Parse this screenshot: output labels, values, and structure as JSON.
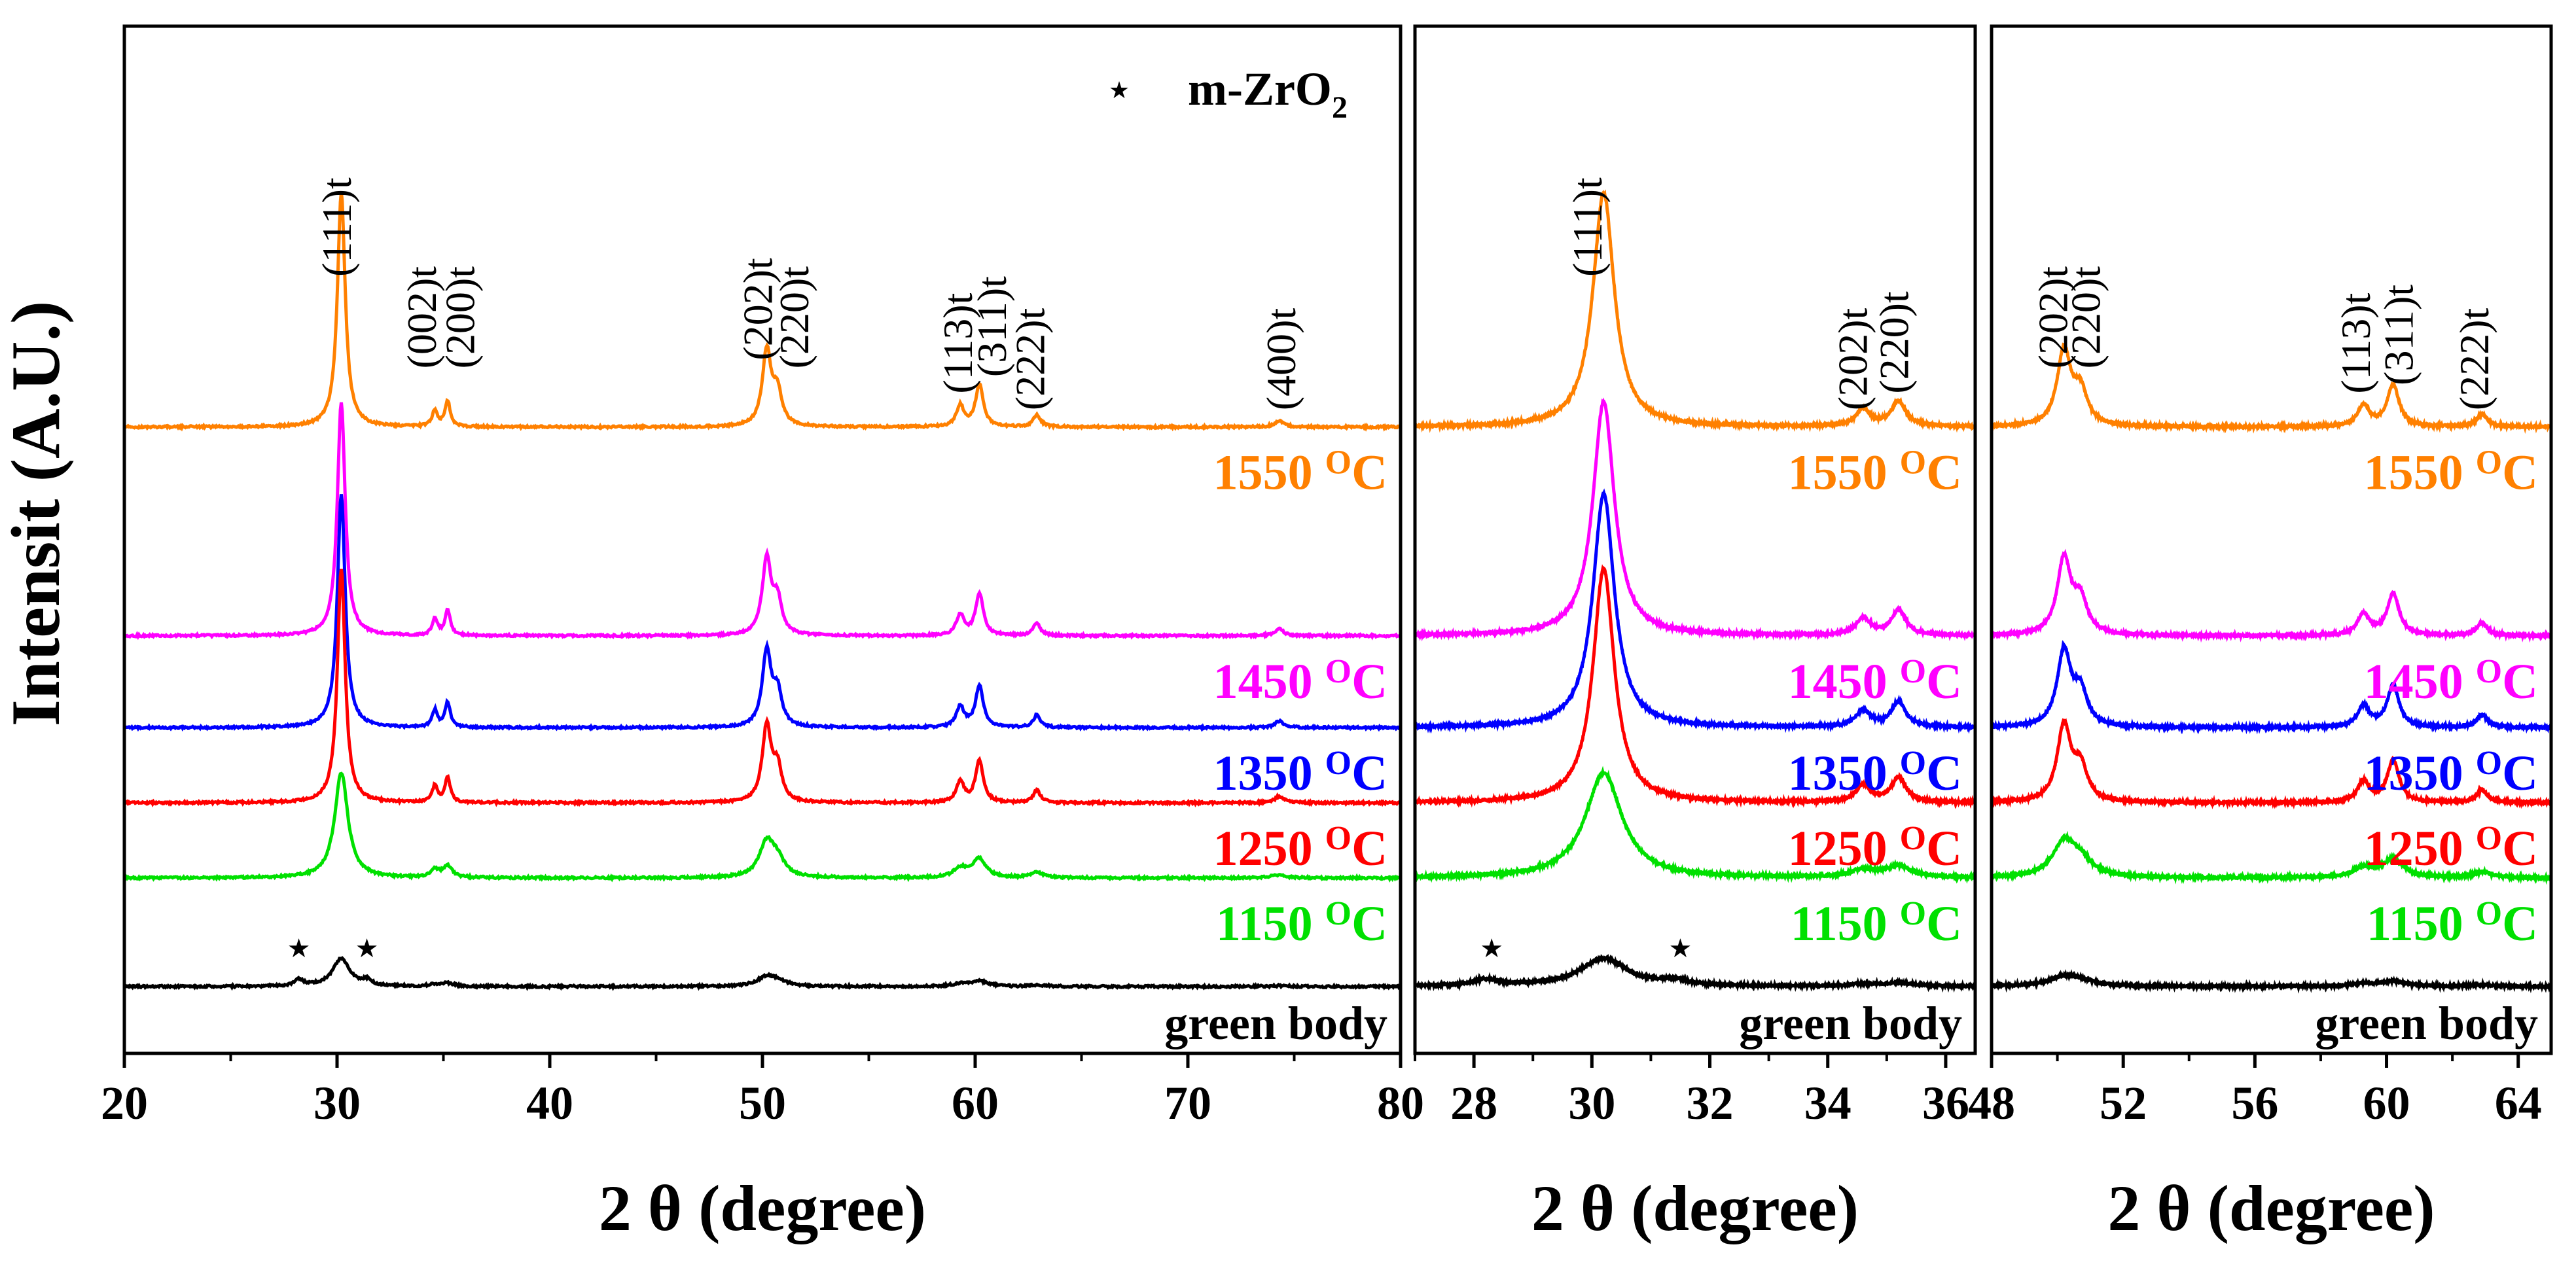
{
  "chart_data": {
    "type": "line",
    "ylabel": "Intensit (A.U.)",
    "legend": {
      "marker": "★",
      "label": "m-ZrO",
      "subscript": "2"
    },
    "temperature_unit": {
      "superscript": "O",
      "unit": "C"
    },
    "samples": [
      {
        "name": "1550",
        "color": "#ff8000",
        "offset": 7
      },
      {
        "name": "1450",
        "color": "#ff00ff",
        "offset": 4.5
      },
      {
        "name": "1350",
        "color": "#0000ff",
        "offset": 3.4
      },
      {
        "name": "1250",
        "color": "#ff0000",
        "offset": 2.5
      },
      {
        "name": "1150",
        "color": "#00e000",
        "offset": 1.6
      },
      {
        "name": "green body",
        "color": "#000000",
        "offset": 0.3
      }
    ],
    "peaks": [
      {
        "pos": 30.2,
        "h": 2.8,
        "w": 0.22
      },
      {
        "pos": 34.6,
        "h": 0.2,
        "w": 0.15
      },
      {
        "pos": 35.2,
        "h": 0.3,
        "w": 0.15
      },
      {
        "pos": 50.2,
        "h": 0.9,
        "w": 0.25
      },
      {
        "pos": 50.7,
        "h": 0.4,
        "w": 0.25
      },
      {
        "pos": 59.3,
        "h": 0.25,
        "w": 0.22
      },
      {
        "pos": 60.2,
        "h": 0.5,
        "w": 0.22
      },
      {
        "pos": 62.9,
        "h": 0.15,
        "w": 0.2
      },
      {
        "pos": 74.3,
        "h": 0.08,
        "w": 0.25
      }
    ],
    "panels": [
      {
        "id": "full",
        "xlim": [
          20,
          80
        ],
        "ylim": [
          -0.5,
          11.8
        ],
        "xticks": [
          20,
          30,
          40,
          50,
          60,
          70,
          80
        ],
        "xlabel": "2 θ (degree)",
        "show_ylabel": true,
        "show_legend": true,
        "peak_labels": [
          {
            "text": "(111)t",
            "x": 30.2,
            "y": 8.8
          },
          {
            "text": "(002)t",
            "x": 34.2,
            "y": 7.7
          },
          {
            "text": "(200)t",
            "x": 36.0,
            "y": 7.7
          },
          {
            "text": "(202)t",
            "x": 50.0,
            "y": 7.8
          },
          {
            "text": "(220)t",
            "x": 51.7,
            "y": 7.7
          },
          {
            "text": "(113)t",
            "x": 59.4,
            "y": 7.4
          },
          {
            "text": "(311)t",
            "x": 61.0,
            "y": 7.6
          },
          {
            "text": "(222)t",
            "x": 62.8,
            "y": 7.2
          },
          {
            "text": "(400)t",
            "x": 74.6,
            "y": 7.2
          }
        ],
        "monoclinic_marks": [
          28.2,
          31.4
        ]
      },
      {
        "id": "zoom-28-36",
        "xlim": [
          27.0,
          36.5
        ],
        "ylim": [
          -0.5,
          11.8
        ],
        "xticks": [
          28,
          30,
          32,
          34,
          36
        ],
        "xlabel": "2 θ (degree)",
        "show_ylabel": false,
        "show_legend": false,
        "peak_labels": [
          {
            "text": "(111)t",
            "x": 30.0,
            "y": 8.8
          },
          {
            "text": "(202)t",
            "x": 34.5,
            "y": 7.2
          },
          {
            "text": "(220)t",
            "x": 35.2,
            "y": 7.4
          }
        ],
        "monoclinic_marks": [
          28.3,
          31.5
        ]
      },
      {
        "id": "zoom-48-64",
        "xlim": [
          48,
          65
        ],
        "ylim": [
          -0.5,
          11.8
        ],
        "xticks": [
          48,
          52,
          56,
          60,
          64
        ],
        "xlabel": "2 θ (degree)",
        "show_ylabel": false,
        "show_legend": false,
        "peak_labels": [
          {
            "text": "(202)t",
            "x": 50.0,
            "y": 7.7
          },
          {
            "text": "(220)t",
            "x": 51.0,
            "y": 7.7
          },
          {
            "text": "(113)t",
            "x": 59.2,
            "y": 7.4
          },
          {
            "text": "(311)t",
            "x": 60.5,
            "y": 7.5
          },
          {
            "text": "(222)t",
            "x": 62.8,
            "y": 7.2
          }
        ],
        "monoclinic_marks": []
      }
    ]
  }
}
